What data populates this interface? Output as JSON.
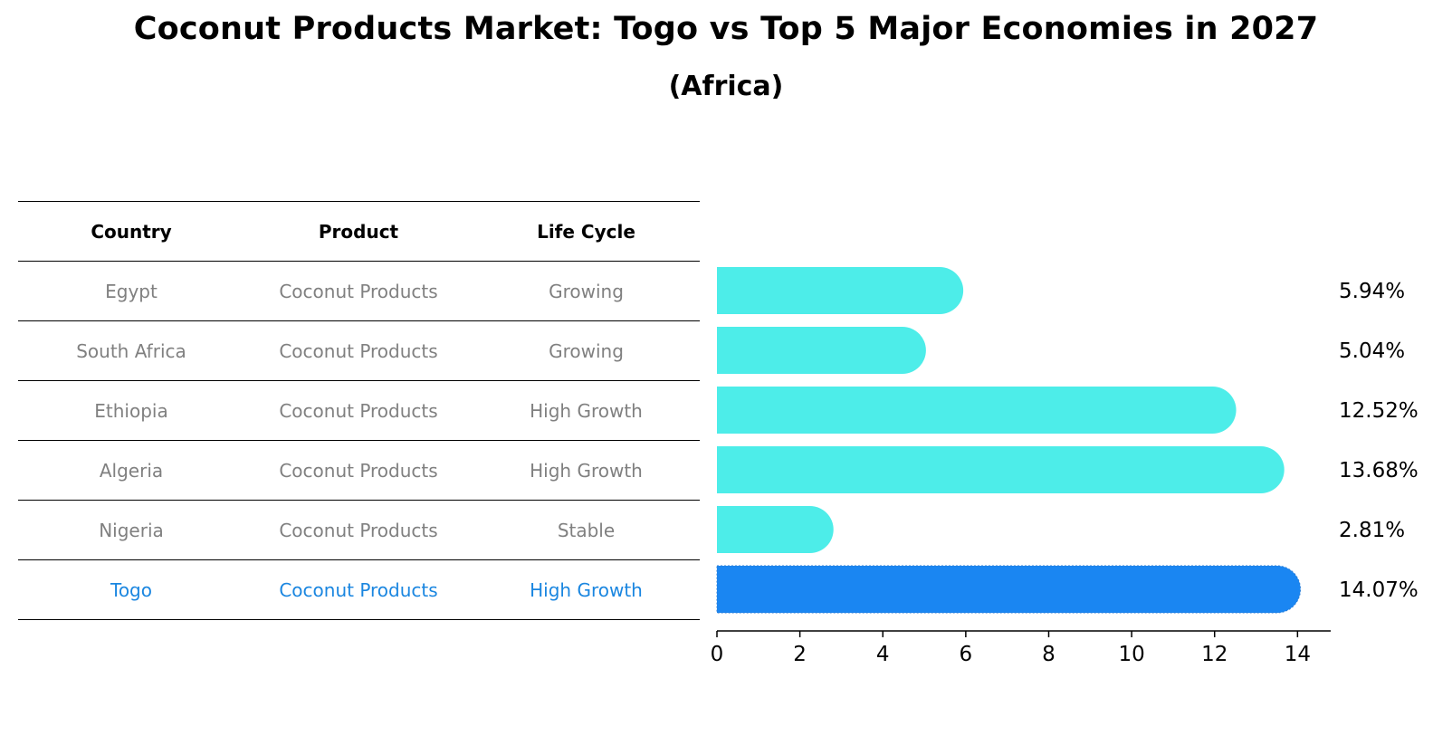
{
  "title": "Coconut Products Market: Togo vs Top 5 Major Economies in 2027",
  "subtitle": "(Africa)",
  "table": {
    "headers": [
      "Country",
      "Product",
      "Life Cycle"
    ],
    "rows": [
      {
        "country": "Egypt",
        "product": "Coconut Products",
        "life_cycle": "Growing"
      },
      {
        "country": "South Africa",
        "product": "Coconut Products",
        "life_cycle": "Growing"
      },
      {
        "country": "Ethiopia",
        "product": "Coconut Products",
        "life_cycle": "High Growth"
      },
      {
        "country": "Algeria",
        "product": "Coconut Products",
        "life_cycle": "High Growth"
      },
      {
        "country": "Nigeria",
        "product": "Coconut Products",
        "life_cycle": "Stable"
      },
      {
        "country": "Togo",
        "product": "Coconut Products",
        "life_cycle": "High Growth"
      }
    ]
  },
  "colors": {
    "bar": "#4dede9",
    "highlight": "#1a86f2",
    "highlight_text": "#1a86e0",
    "muted_text": "#808080"
  },
  "chart_data": {
    "type": "bar",
    "orientation": "horizontal",
    "categories": [
      "Egypt",
      "South Africa",
      "Ethiopia",
      "Algeria",
      "Nigeria",
      "Togo"
    ],
    "values": [
      5.94,
      5.04,
      12.52,
      13.68,
      2.81,
      14.07
    ],
    "value_labels": [
      "5.94%",
      "5.04%",
      "12.52%",
      "13.68%",
      "2.81%",
      "14.07%"
    ],
    "highlight_category": "Togo",
    "xlim": [
      0,
      14.8
    ],
    "xticks": [
      0,
      2,
      4,
      6,
      8,
      10,
      12,
      14
    ],
    "xlabel": "",
    "ylabel": "",
    "grid": false
  }
}
